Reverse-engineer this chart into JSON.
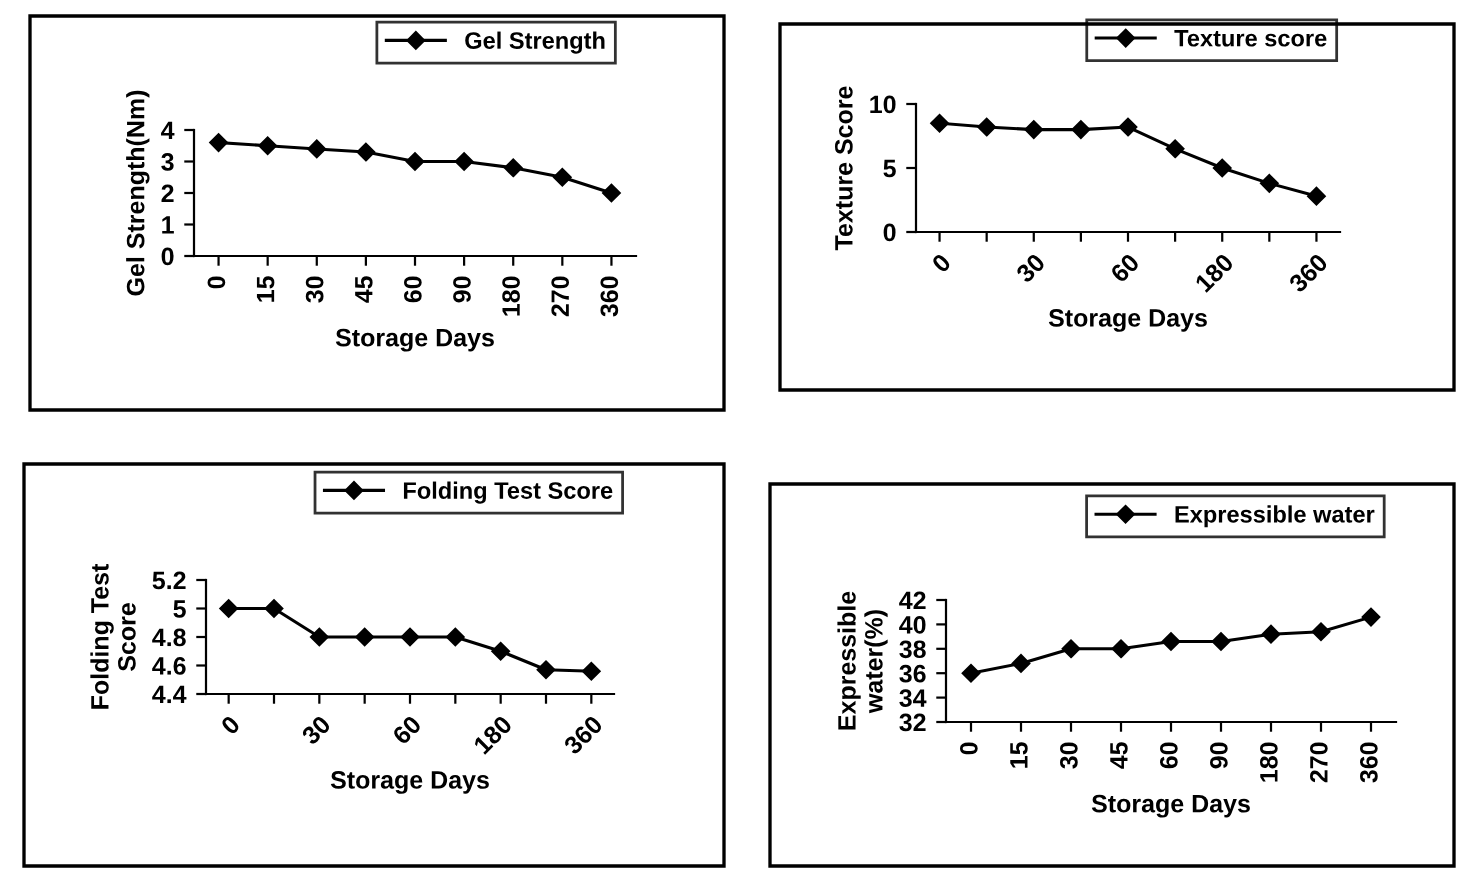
{
  "chart_data": [
    {
      "type": "line",
      "xlabel": "Storage Days",
      "ylabel": "Gel Strength(Nm)",
      "categories": [
        "0",
        "15",
        "30",
        "45",
        "60",
        "90",
        "180",
        "270",
        "360"
      ],
      "series": [
        {
          "name": "Gel Strength",
          "color": "#000000",
          "values": [
            3.6,
            3.5,
            3.4,
            3.3,
            3.0,
            3.0,
            2.8,
            2.5,
            2.0
          ]
        }
      ],
      "ylim": [
        0,
        4
      ],
      "yticks": [
        0,
        1,
        2,
        3,
        4
      ],
      "marker": "diamond",
      "legend": "top right",
      "grid": false
    },
    {
      "type": "line",
      "xlabel": "Storage Days",
      "ylabel": "Texture Score",
      "categories": [
        "0",
        null,
        "30",
        null,
        "60",
        null,
        "180",
        null,
        "360"
      ],
      "series": [
        {
          "name": "Texture score",
          "color": "#000000",
          "values": [
            8.5,
            8.2,
            8.0,
            8.0,
            8.2,
            6.5,
            5.0,
            3.8,
            2.8
          ]
        }
      ],
      "ylim": [
        0,
        10
      ],
      "yticks": [
        0,
        5,
        10
      ],
      "marker": "diamond",
      "legend": "top right",
      "grid": false
    },
    {
      "type": "line",
      "xlabel": "Storage Days",
      "ylabel": "Folding Test\nScore",
      "categories": [
        "0",
        null,
        "30",
        null,
        "60",
        null,
        "180",
        null,
        "360"
      ],
      "series": [
        {
          "name": "Folding Test Score",
          "color": "#000000",
          "values": [
            5.0,
            5.0,
            4.8,
            4.8,
            4.8,
            4.8,
            4.7,
            4.57,
            4.56
          ]
        }
      ],
      "ylim": [
        4.4,
        5.2
      ],
      "yticks": [
        4.4,
        4.6,
        4.8,
        5,
        5.2
      ],
      "marker": "diamond",
      "legend": "top right",
      "grid": false
    },
    {
      "type": "line",
      "xlabel": "Storage Days",
      "ylabel": "Expressible\nwater(%)",
      "categories": [
        "0",
        "15",
        "30",
        "45",
        "60",
        "90",
        "180",
        "270",
        "360"
      ],
      "series": [
        {
          "name": "Expressible water",
          "color": "#000000",
          "values": [
            36,
            36.8,
            38,
            38,
            38.6,
            38.6,
            39.2,
            39.4,
            40.6
          ]
        }
      ],
      "ylim": [
        32,
        42
      ],
      "yticks": [
        32,
        34,
        36,
        38,
        40,
        42
      ],
      "marker": "diamond",
      "legend": "top right",
      "grid": false
    }
  ]
}
